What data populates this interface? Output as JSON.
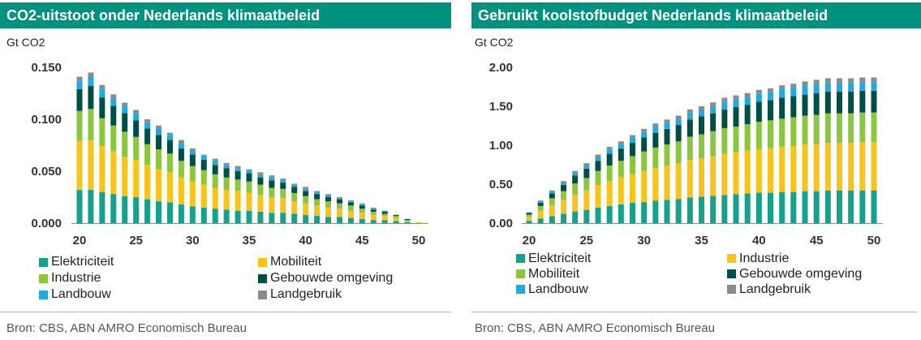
{
  "theme": {
    "header_color": "#00917f"
  },
  "chart_data": [
    {
      "type": "bar",
      "stacked": true,
      "title": "CO2-uitstoot onder Nederlands klimaatbeleid",
      "ylabel": "Gt CO2",
      "source": "Bron: CBS, ABN AMRO Economisch Bureau",
      "x": [
        20,
        21,
        22,
        23,
        24,
        25,
        26,
        27,
        28,
        29,
        30,
        31,
        32,
        33,
        34,
        35,
        36,
        37,
        38,
        39,
        40,
        41,
        42,
        43,
        44,
        45,
        46,
        47,
        48,
        49,
        50
      ],
      "xlim": [
        20,
        50
      ],
      "ylim": [
        0,
        0.15
      ],
      "x_tick_labels": [
        "20",
        "25",
        "30",
        "35",
        "40",
        "45",
        "50"
      ],
      "y_tick_labels": [
        "0.000",
        "0.050",
        "0.100",
        "0.150"
      ],
      "grid": false,
      "legend_position": "bottom",
      "series": [
        {
          "name": "Elektriciteit",
          "color": "#17a08c",
          "values": [
            0.032,
            0.032,
            0.03,
            0.028,
            0.026,
            0.025,
            0.023,
            0.021,
            0.02,
            0.018,
            0.016,
            0.015,
            0.014,
            0.013,
            0.012,
            0.012,
            0.011,
            0.01,
            0.01,
            0.009,
            0.008,
            0.007,
            0.006,
            0.006,
            0.005,
            0.004,
            0.003,
            0.003,
            0.002,
            0.001,
            0.0
          ]
        },
        {
          "name": "Mobiliteit",
          "color": "#f8c31a",
          "values": [
            0.047,
            0.048,
            0.044,
            0.041,
            0.038,
            0.036,
            0.033,
            0.031,
            0.029,
            0.026,
            0.024,
            0.022,
            0.02,
            0.019,
            0.019,
            0.017,
            0.016,
            0.015,
            0.014,
            0.012,
            0.011,
            0.01,
            0.009,
            0.008,
            0.007,
            0.006,
            0.005,
            0.004,
            0.003,
            0.001,
            0.001
          ]
        },
        {
          "name": "Industrie",
          "color": "#8cc640",
          "values": [
            0.029,
            0.03,
            0.027,
            0.025,
            0.024,
            0.022,
            0.02,
            0.019,
            0.018,
            0.016,
            0.015,
            0.014,
            0.013,
            0.012,
            0.011,
            0.011,
            0.01,
            0.009,
            0.009,
            0.008,
            0.007,
            0.006,
            0.006,
            0.005,
            0.005,
            0.004,
            0.003,
            0.002,
            0.002,
            0.001,
            0.0
          ]
        },
        {
          "name": "Gebouwde omgeving",
          "color": "#004f47",
          "values": [
            0.021,
            0.022,
            0.02,
            0.019,
            0.018,
            0.016,
            0.015,
            0.014,
            0.013,
            0.012,
            0.011,
            0.01,
            0.009,
            0.009,
            0.008,
            0.008,
            0.007,
            0.007,
            0.006,
            0.006,
            0.005,
            0.005,
            0.004,
            0.004,
            0.003,
            0.003,
            0.002,
            0.002,
            0.001,
            0.001,
            0.0
          ]
        },
        {
          "name": "Landbouw",
          "color": "#22a9e0",
          "values": [
            0.008,
            0.009,
            0.008,
            0.007,
            0.007,
            0.007,
            0.006,
            0.006,
            0.005,
            0.005,
            0.004,
            0.004,
            0.004,
            0.003,
            0.003,
            0.003,
            0.003,
            0.003,
            0.003,
            0.002,
            0.002,
            0.002,
            0.002,
            0.001,
            0.001,
            0.001,
            0.001,
            0.001,
            0.0,
            0.0,
            0.0
          ]
        },
        {
          "name": "Landgebruik",
          "color": "#8b8b8b",
          "values": [
            0.004,
            0.004,
            0.004,
            0.004,
            0.003,
            0.003,
            0.003,
            0.003,
            0.002,
            0.003,
            0.002,
            0.001,
            0.002,
            0.002,
            0.002,
            0.001,
            0.002,
            0.002,
            0.001,
            0.001,
            0.002,
            0.001,
            0.001,
            0.001,
            0.001,
            0.001,
            0.001,
            0.0,
            0.0,
            0.0,
            0.0
          ]
        }
      ]
    },
    {
      "type": "bar",
      "stacked": true,
      "title": "Gebruikt koolstofbudget Nederlands klimaatbeleid",
      "ylabel": "Gt CO2",
      "source": "Bron: CBS, ABN AMRO Economisch Bureau",
      "x": [
        20,
        21,
        22,
        23,
        24,
        25,
        26,
        27,
        28,
        29,
        30,
        31,
        32,
        33,
        34,
        35,
        36,
        37,
        38,
        39,
        40,
        41,
        42,
        43,
        44,
        45,
        46,
        47,
        48,
        49,
        50
      ],
      "xlim": [
        20,
        50
      ],
      "ylim": [
        0,
        2.0
      ],
      "x_tick_labels": [
        "20",
        "25",
        "30",
        "35",
        "40",
        "45",
        "50"
      ],
      "y_tick_labels": [
        "0.00",
        "0.50",
        "1.00",
        "1.50",
        "2.00"
      ],
      "grid": false,
      "legend_position": "bottom",
      "series": [
        {
          "name": "Elektriciteit",
          "color": "#17a08c",
          "values": [
            0.03,
            0.06,
            0.09,
            0.12,
            0.15,
            0.17,
            0.2,
            0.22,
            0.24,
            0.26,
            0.27,
            0.29,
            0.3,
            0.31,
            0.33,
            0.34,
            0.35,
            0.36,
            0.37,
            0.38,
            0.39,
            0.39,
            0.4,
            0.4,
            0.41,
            0.41,
            0.42,
            0.42,
            0.42,
            0.42,
            0.42
          ]
        },
        {
          "name": "Industrie",
          "color": "#f8c31a",
          "values": [
            0.05,
            0.1,
            0.14,
            0.18,
            0.22,
            0.25,
            0.29,
            0.32,
            0.35,
            0.37,
            0.4,
            0.42,
            0.44,
            0.46,
            0.48,
            0.49,
            0.51,
            0.53,
            0.54,
            0.55,
            0.56,
            0.57,
            0.58,
            0.59,
            0.6,
            0.6,
            0.61,
            0.61,
            0.61,
            0.62,
            0.62
          ]
        },
        {
          "name": "Mobiliteit",
          "color": "#8cc640",
          "values": [
            0.03,
            0.06,
            0.09,
            0.11,
            0.14,
            0.16,
            0.18,
            0.2,
            0.21,
            0.23,
            0.25,
            0.26,
            0.27,
            0.28,
            0.3,
            0.31,
            0.32,
            0.33,
            0.33,
            0.34,
            0.35,
            0.36,
            0.36,
            0.37,
            0.37,
            0.38,
            0.38,
            0.38,
            0.38,
            0.38,
            0.38
          ]
        },
        {
          "name": "Gebouwde omgeving",
          "color": "#004f47",
          "values": [
            0.02,
            0.04,
            0.06,
            0.08,
            0.1,
            0.12,
            0.13,
            0.15,
            0.16,
            0.17,
            0.18,
            0.19,
            0.2,
            0.21,
            0.22,
            0.23,
            0.23,
            0.24,
            0.25,
            0.25,
            0.26,
            0.26,
            0.27,
            0.27,
            0.27,
            0.28,
            0.28,
            0.28,
            0.28,
            0.28,
            0.28
          ]
        },
        {
          "name": "Landbouw",
          "color": "#22a9e0",
          "values": [
            0.01,
            0.02,
            0.03,
            0.03,
            0.04,
            0.05,
            0.05,
            0.06,
            0.06,
            0.07,
            0.07,
            0.08,
            0.08,
            0.08,
            0.09,
            0.09,
            0.09,
            0.1,
            0.1,
            0.1,
            0.1,
            0.1,
            0.11,
            0.11,
            0.11,
            0.11,
            0.11,
            0.11,
            0.11,
            0.11,
            0.11
          ]
        },
        {
          "name": "Landgebruik",
          "color": "#8b8b8b",
          "values": [
            0.0,
            0.01,
            0.01,
            0.02,
            0.02,
            0.02,
            0.03,
            0.03,
            0.03,
            0.03,
            0.04,
            0.04,
            0.04,
            0.04,
            0.04,
            0.04,
            0.05,
            0.05,
            0.05,
            0.05,
            0.05,
            0.05,
            0.05,
            0.05,
            0.06,
            0.06,
            0.06,
            0.06,
            0.06,
            0.06,
            0.06
          ]
        }
      ]
    }
  ]
}
